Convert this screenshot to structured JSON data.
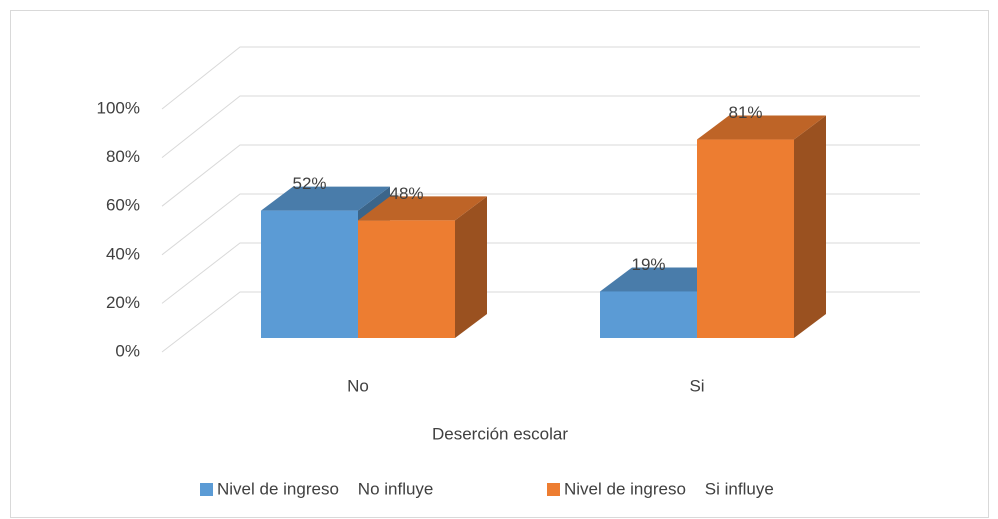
{
  "chart_data": {
    "type": "bar3d",
    "categories": [
      "No",
      "Si"
    ],
    "x_label": "Deserción escolar",
    "series": [
      {
        "name": "Nivel de ingreso    No influye",
        "color": "#5b9bd5",
        "values": [
          52,
          19
        ],
        "value_labels": [
          "52%",
          "19%"
        ]
      },
      {
        "name": "Nivel de ingreso    Si influye",
        "color": "#ed7d31",
        "values": [
          48,
          81
        ],
        "value_labels": [
          "48%",
          "81%"
        ]
      }
    ],
    "ylim": [
      0,
      100
    ],
    "yticks": [
      {
        "value": 0,
        "label": "0%"
      },
      {
        "value": 20,
        "label": "20%"
      },
      {
        "value": 40,
        "label": "40%"
      },
      {
        "value": 60,
        "label": "60%"
      },
      {
        "value": 80,
        "label": "80%"
      },
      {
        "value": 100,
        "label": "100%"
      }
    ],
    "grid": true,
    "legend": "bottom"
  }
}
